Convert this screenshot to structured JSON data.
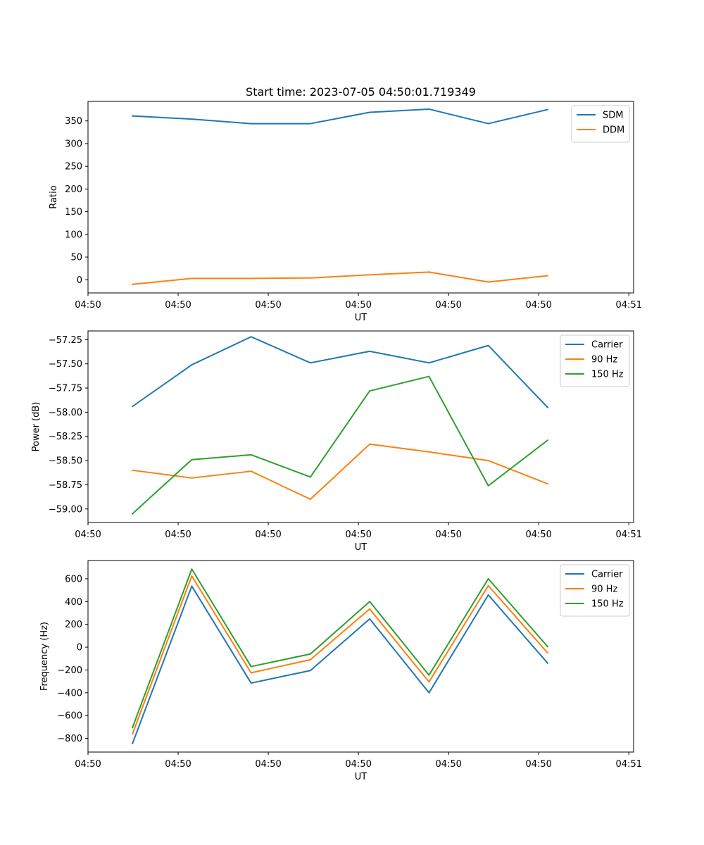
{
  "chart_data": [
    {
      "type": "line",
      "title": "Start time: 2023-07-05 04:50:01.719349",
      "xlabel": "UT",
      "ylabel": "Ratio",
      "x": [
        0,
        1,
        2,
        3,
        4,
        5,
        6,
        7
      ],
      "xlim": [
        -0.75,
        8.45
      ],
      "xtick_positions": [
        -0.75,
        0.77,
        2.29,
        3.81,
        5.33,
        6.85,
        8.37
      ],
      "xtick_labels": [
        "04:50",
        "04:50",
        "04:50",
        "04:50",
        "04:50",
        "04:50",
        "04:51"
      ],
      "ylim": [
        -29,
        393
      ],
      "yticks": [
        0,
        50,
        100,
        150,
        200,
        250,
        300,
        350
      ],
      "legend": "top-right",
      "grid": false,
      "series": [
        {
          "name": "SDM",
          "color": "#1f77b4",
          "values": [
            361,
            354,
            344,
            344,
            369,
            376,
            344,
            375
          ]
        },
        {
          "name": "DDM",
          "color": "#ff7f0e",
          "values": [
            -10,
            3,
            3,
            4,
            11,
            17,
            -5,
            9
          ]
        }
      ]
    },
    {
      "type": "line",
      "title": "",
      "xlabel": "UT",
      "ylabel": "Power (dB)",
      "x": [
        0,
        1,
        2,
        3,
        4,
        5,
        6,
        7
      ],
      "xlim": [
        -0.75,
        8.45
      ],
      "xtick_positions": [
        -0.75,
        0.77,
        2.29,
        3.81,
        5.33,
        6.85,
        8.37
      ],
      "xtick_labels": [
        "04:50",
        "04:50",
        "04:50",
        "04:50",
        "04:50",
        "04:50",
        "04:51"
      ],
      "ylim": [
        -59.14,
        -57.16
      ],
      "yticks": [
        -59.0,
        -58.75,
        -58.5,
        -58.25,
        -58.0,
        -57.75,
        -57.5,
        -57.25
      ],
      "ytick_labels": [
        "−59.00",
        "−58.75",
        "−58.50",
        "−58.25",
        "−58.00",
        "−57.75",
        "−57.50",
        "−57.25"
      ],
      "legend": "top-right",
      "grid": false,
      "series": [
        {
          "name": "Carrier",
          "color": "#1f77b4",
          "values": [
            -57.94,
            -57.51,
            -57.22,
            -57.49,
            -57.37,
            -57.49,
            -57.31,
            -57.95
          ]
        },
        {
          "name": "90 Hz",
          "color": "#ff7f0e",
          "values": [
            -58.6,
            -58.68,
            -58.61,
            -58.9,
            -58.33,
            -58.41,
            -58.5,
            -58.74
          ]
        },
        {
          "name": "150 Hz",
          "color": "#2ca02c",
          "values": [
            -59.05,
            -58.49,
            -58.44,
            -58.67,
            -57.78,
            -57.63,
            -58.76,
            -58.29
          ]
        }
      ]
    },
    {
      "type": "line",
      "title": "",
      "xlabel": "UT",
      "ylabel": "Frequency (Hz)",
      "x": [
        0,
        1,
        2,
        3,
        4,
        5,
        6,
        7
      ],
      "xlim": [
        -0.75,
        8.45
      ],
      "xtick_positions": [
        -0.75,
        0.77,
        2.29,
        3.81,
        5.33,
        6.85,
        8.37
      ],
      "xtick_labels": [
        "04:50",
        "04:50",
        "04:50",
        "04:50",
        "04:50",
        "04:50",
        "04:51"
      ],
      "ylim": [
        -920,
        760
      ],
      "yticks": [
        -800,
        -600,
        -400,
        -200,
        0,
        200,
        400,
        600
      ],
      "ytick_labels": [
        "−800",
        "−600",
        "−400",
        "−200",
        "0",
        "200",
        "400",
        "600"
      ],
      "legend": "top-right",
      "grid": false,
      "series": [
        {
          "name": "Carrier",
          "color": "#1f77b4",
          "values": [
            -845,
            535,
            -315,
            -205,
            248,
            -400,
            458,
            -140
          ]
        },
        {
          "name": "90 Hz",
          "color": "#ff7f0e",
          "values": [
            -760,
            625,
            -225,
            -110,
            335,
            -305,
            540,
            -50
          ]
        },
        {
          "name": "150 Hz",
          "color": "#2ca02c",
          "values": [
            -705,
            685,
            -170,
            -60,
            400,
            -245,
            600,
            5
          ]
        }
      ]
    }
  ]
}
